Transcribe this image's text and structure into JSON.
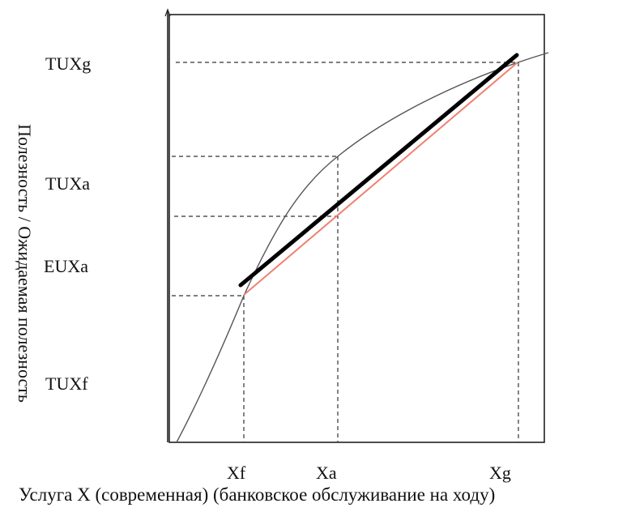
{
  "y_axis_label": "Полезность / Ожидаемая полезность",
  "x_axis_label": "Услуга X (современная) (банковское обслуживание на ходу)",
  "y_ticks": {
    "tuxg": "TUXg",
    "tuxa": "TUXa",
    "euxa": "EUXa",
    "tuxf": "TUXf"
  },
  "x_ticks": {
    "xf": "Xf",
    "xa": "Xa",
    "xg": "Xg"
  },
  "colors": {
    "utility_curve": "#555555",
    "black_line": "#000000",
    "red_line": "#f08070",
    "dashed": "#333333"
  }
}
